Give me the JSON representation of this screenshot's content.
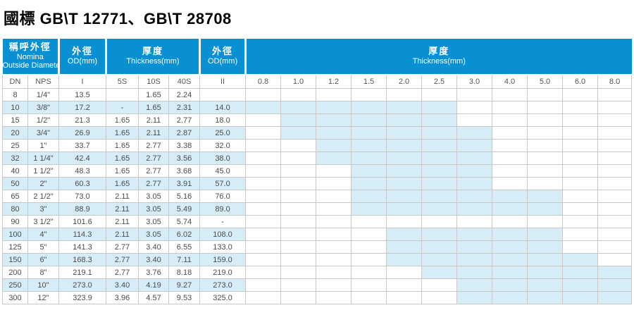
{
  "title": "國標 GB\\T 12771、GB\\T 28708",
  "colors": {
    "header_blue": "#0890d3",
    "highlight_blue": "#d6edf8",
    "grid_line": "#c8c8c8",
    "text": "#4b4b4b"
  },
  "table": {
    "groups": [
      {
        "zh": "稱呼外徑",
        "en1": "Nomina",
        "en2": "Outside Diameter"
      },
      {
        "zh": "外徑",
        "en": "OD(mm)"
      },
      {
        "zh": "厚度",
        "en": "Thickness(mm)"
      },
      {
        "zh": "外徑",
        "en": "OD(mm)"
      },
      {
        "zh": "厚度",
        "en": "Thickness(mm)"
      }
    ],
    "subheaders": [
      "DN",
      "NPS",
      "I",
      "5S",
      "10S",
      "40S",
      "II",
      "0.8",
      "1.0",
      "1.2",
      "1.5",
      "2.0",
      "2.5",
      "3.0",
      "4.0",
      "5.0",
      "6.0",
      "8.0"
    ],
    "thickness_columns": [
      "0.8",
      "1.0",
      "1.2",
      "1.5",
      "2.0",
      "2.5",
      "3.0",
      "4.0",
      "5.0",
      "6.0",
      "8.0"
    ],
    "rows": [
      {
        "dn": "8",
        "nps": "1/4\"",
        "od1": "13.5",
        "s5": "",
        "s10": "1.65",
        "s40": "2.24",
        "od2": "",
        "range": null
      },
      {
        "dn": "10",
        "nps": "3/8\"",
        "od1": "17.2",
        "s5": "-",
        "s10": "1.65",
        "s40": "2.31",
        "od2": "14.0",
        "range": {
          "from": "0.8",
          "to": "2.5"
        }
      },
      {
        "dn": "15",
        "nps": "1/2\"",
        "od1": "21.3",
        "s5": "1.65",
        "s10": "2.11",
        "s40": "2.77",
        "od2": "18.0",
        "range": {
          "from": "1.0",
          "to": "2.5"
        }
      },
      {
        "dn": "20",
        "nps": "3/4\"",
        "od1": "26.9",
        "s5": "1.65",
        "s10": "2.11",
        "s40": "2.87",
        "od2": "25.0",
        "range": {
          "from": "1.0",
          "to": "3.0"
        }
      },
      {
        "dn": "25",
        "nps": "1\"",
        "od1": "33.7",
        "s5": "1.65",
        "s10": "2.77",
        "s40": "3.38",
        "od2": "32.0",
        "range": {
          "from": "1.2",
          "to": "3.0"
        }
      },
      {
        "dn": "32",
        "nps": "1 1/4\"",
        "od1": "42.4",
        "s5": "1.65",
        "s10": "2.77",
        "s40": "3.56",
        "od2": "38.0",
        "range": {
          "from": "1.2",
          "to": "3.0"
        }
      },
      {
        "dn": "40",
        "nps": "1 1/2\"",
        "od1": "48.3",
        "s5": "1.65",
        "s10": "2.77",
        "s40": "3.68",
        "od2": "45.0",
        "range": {
          "from": "1.5",
          "to": "3.0"
        }
      },
      {
        "dn": "50",
        "nps": "2\"",
        "od1": "60.3",
        "s5": "1.65",
        "s10": "2.77",
        "s40": "3.91",
        "od2": "57.0",
        "range": {
          "from": "1.5",
          "to": "3.0"
        }
      },
      {
        "dn": "65",
        "nps": "2 1/2\"",
        "od1": "73.0",
        "s5": "2.11",
        "s10": "3.05",
        "s40": "5.16",
        "od2": "76.0",
        "range": {
          "from": "1.5",
          "to": "5.0"
        }
      },
      {
        "dn": "80",
        "nps": "3\"",
        "od1": "88.9",
        "s5": "2.11",
        "s10": "3.05",
        "s40": "5.49",
        "od2": "89.0",
        "range": {
          "from": "1.5",
          "to": "5.0"
        }
      },
      {
        "dn": "90",
        "nps": "3 1/2\"",
        "od1": "101.6",
        "s5": "2.11",
        "s10": "3.05",
        "s40": "5.74",
        "od2": "-",
        "range": null
      },
      {
        "dn": "100",
        "nps": "4\"",
        "od1": "114.3",
        "s5": "2.11",
        "s10": "3.05",
        "s40": "6.02",
        "od2": "108.0",
        "range": {
          "from": "2.0",
          "to": "5.0"
        }
      },
      {
        "dn": "125",
        "nps": "5\"",
        "od1": "141.3",
        "s5": "2.77",
        "s10": "3.40",
        "s40": "6.55",
        "od2": "133.0",
        "range": {
          "from": "2.0",
          "to": "5.0"
        }
      },
      {
        "dn": "150",
        "nps": "6\"",
        "od1": "168.3",
        "s5": "2.77",
        "s10": "3.40",
        "s40": "7.11",
        "od2": "159.0",
        "range": {
          "from": "2.0",
          "to": "6.0"
        }
      },
      {
        "dn": "200",
        "nps": "8\"",
        "od1": "219.1",
        "s5": "2.77",
        "s10": "3.76",
        "s40": "8.18",
        "od2": "219.0",
        "range": {
          "from": "2.5",
          "to": "8.0"
        }
      },
      {
        "dn": "250",
        "nps": "10\"",
        "od1": "273.0",
        "s5": "3.40",
        "s10": "4.19",
        "s40": "9.27",
        "od2": "273.0",
        "range": {
          "from": "3.0",
          "to": "8.0"
        }
      },
      {
        "dn": "300",
        "nps": "12\"",
        "od1": "323.9",
        "s5": "3.96",
        "s10": "4.57",
        "s40": "9.53",
        "od2": "325.0",
        "range": {
          "from": "3.0",
          "to": "8.0"
        }
      }
    ]
  }
}
